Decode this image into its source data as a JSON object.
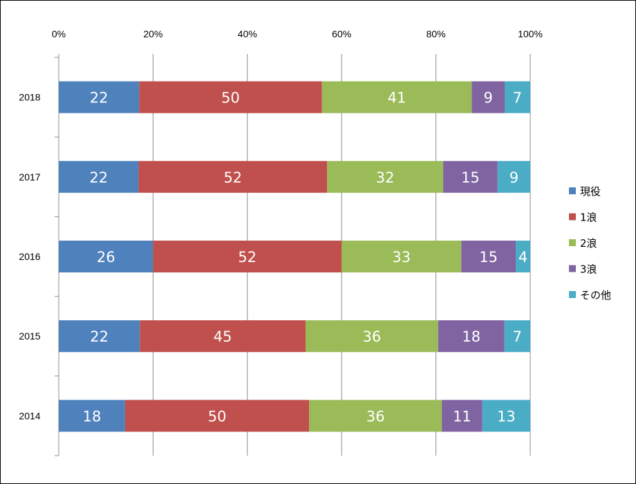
{
  "chart_data": {
    "type": "bar",
    "orientation": "horizontal",
    "stacked": "percent",
    "categories": [
      "2018",
      "2017",
      "2016",
      "2015",
      "2014"
    ],
    "x_ticks": [
      "0%",
      "20%",
      "40%",
      "60%",
      "80%",
      "100%"
    ],
    "xlim": [
      0,
      100
    ],
    "grid": true,
    "legend_position": "right",
    "series": [
      {
        "name": "現役",
        "color": "#4F81BD",
        "values": [
          22,
          22,
          26,
          22,
          18
        ]
      },
      {
        "name": "1浪",
        "color": "#C0504D",
        "values": [
          50,
          52,
          52,
          45,
          50
        ]
      },
      {
        "name": "2浪",
        "color": "#9BBB59",
        "values": [
          41,
          32,
          33,
          36,
          36
        ]
      },
      {
        "name": "3浪",
        "color": "#8064A2",
        "values": [
          9,
          15,
          15,
          18,
          11
        ]
      },
      {
        "name": "その他",
        "color": "#4BACC6",
        "values": [
          7,
          9,
          4,
          7,
          13
        ]
      }
    ]
  }
}
